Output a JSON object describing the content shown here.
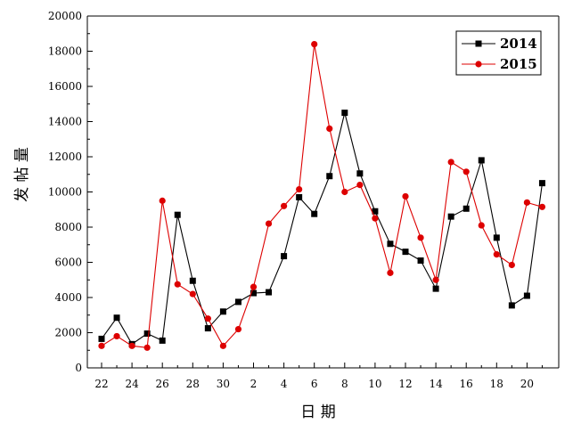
{
  "chart_data": {
    "type": "line",
    "xlabel": "日 期",
    "ylabel": "发 帖 量",
    "ylim": [
      0,
      20000
    ],
    "yticks": [
      0,
      2000,
      4000,
      6000,
      8000,
      10000,
      12000,
      14000,
      16000,
      18000,
      20000
    ],
    "categories": [
      "22",
      "23",
      "24",
      "25",
      "26",
      "27",
      "28",
      "29",
      "30",
      "1",
      "2",
      "3",
      "4",
      "5",
      "6",
      "7",
      "8",
      "9",
      "10",
      "11",
      "12",
      "13",
      "14",
      "15",
      "16",
      "17",
      "18",
      "19",
      "20",
      "21"
    ],
    "xtick_labels": [
      "22",
      "24",
      "26",
      "28",
      "30",
      "2",
      "4",
      "6",
      "8",
      "10",
      "12",
      "14",
      "16",
      "18",
      "20"
    ],
    "grid": false,
    "legend_position": "top-right",
    "series": [
      {
        "name": "2014",
        "color": "#000000",
        "marker": "square",
        "values": [
          1650,
          2850,
          1350,
          1950,
          1550,
          8700,
          4950,
          2250,
          3200,
          3750,
          4250,
          4300,
          6350,
          9700,
          8750,
          10900,
          14500,
          11050,
          8900,
          7050,
          6600,
          6100,
          4500,
          8600,
          9050,
          11800,
          7400,
          3550,
          4100,
          10500
        ]
      },
      {
        "name": "2015",
        "color": "#dd0000",
        "marker": "circle",
        "values": [
          1250,
          1800,
          1250,
          1150,
          9500,
          4750,
          4200,
          2800,
          1250,
          2200,
          4600,
          8200,
          9200,
          10150,
          18400,
          13600,
          10000,
          10400,
          8500,
          5400,
          9750,
          7400,
          5000,
          11700,
          11150,
          8100,
          6450,
          5850,
          9400,
          9150
        ]
      }
    ]
  }
}
